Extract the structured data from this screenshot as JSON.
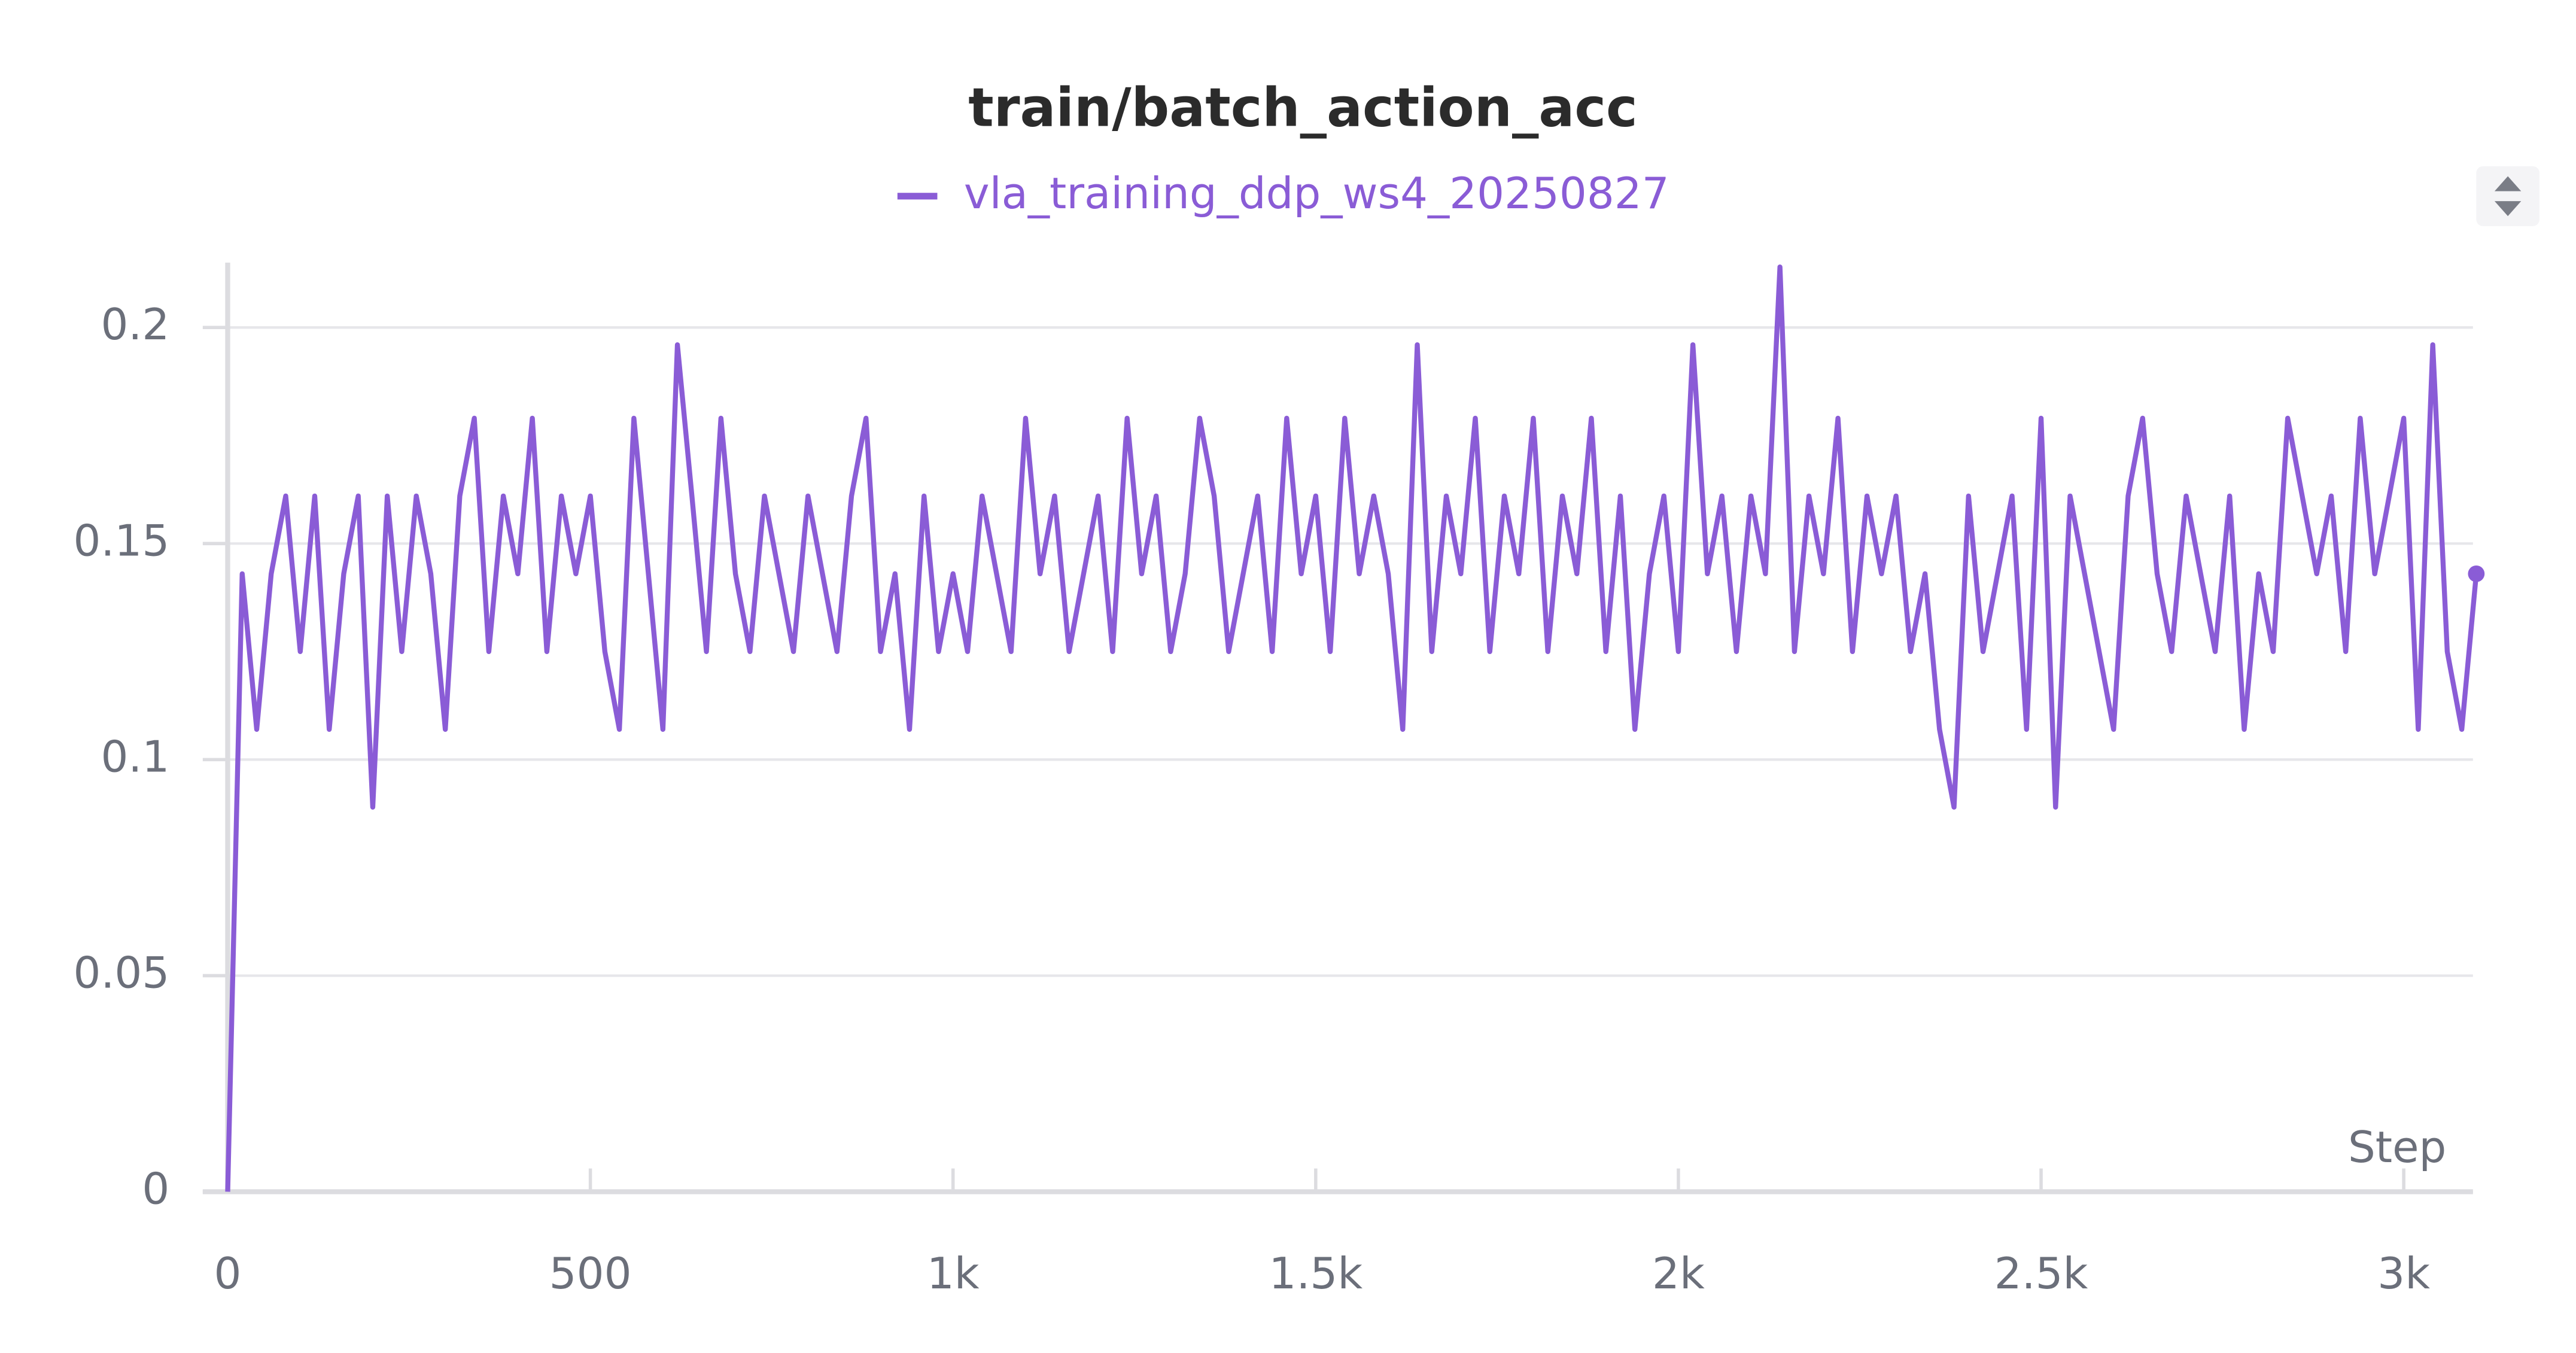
{
  "chart_data": {
    "type": "line",
    "title": "train/batch_action_acc",
    "x_label": "Step",
    "x": [
      0,
      20,
      40,
      60,
      80,
      100,
      120,
      140,
      160,
      180,
      200,
      220,
      240,
      260,
      280,
      300,
      320,
      340,
      360,
      380,
      400,
      420,
      440,
      460,
      480,
      500,
      520,
      540,
      560,
      580,
      600,
      620,
      640,
      660,
      680,
      700,
      720,
      740,
      760,
      780,
      800,
      820,
      840,
      860,
      880,
      900,
      920,
      940,
      960,
      980,
      1000,
      1020,
      1040,
      1060,
      1080,
      1100,
      1120,
      1140,
      1160,
      1180,
      1200,
      1220,
      1240,
      1260,
      1280,
      1300,
      1320,
      1340,
      1360,
      1380,
      1400,
      1420,
      1440,
      1460,
      1480,
      1500,
      1520,
      1540,
      1560,
      1580,
      1600,
      1620,
      1640,
      1660,
      1680,
      1700,
      1720,
      1740,
      1760,
      1780,
      1800,
      1820,
      1840,
      1860,
      1880,
      1900,
      1920,
      1940,
      1960,
      1980,
      2000,
      2020,
      2040,
      2060,
      2080,
      2100,
      2120,
      2140,
      2160,
      2180,
      2200,
      2220,
      2240,
      2260,
      2280,
      2300,
      2320,
      2340,
      2360,
      2380,
      2400,
      2420,
      2440,
      2460,
      2480,
      2500,
      2520,
      2540,
      2560,
      2580,
      2600,
      2620,
      2640,
      2660,
      2680,
      2700,
      2720,
      2740,
      2760,
      2780,
      2800,
      2820,
      2840,
      2860,
      2880,
      2900,
      2920,
      2940,
      2960,
      2980,
      3000,
      3020,
      3040,
      3060,
      3080,
      3100
    ],
    "series": [
      {
        "name": "vla_training_ddp_ws4_20250827",
        "color": "#8a5cd6",
        "values": [
          0,
          0.143,
          0.107,
          0.143,
          0.161,
          0.125,
          0.161,
          0.107,
          0.143,
          0.161,
          0.089,
          0.161,
          0.125,
          0.161,
          0.143,
          0.107,
          0.161,
          0.179,
          0.125,
          0.161,
          0.143,
          0.179,
          0.125,
          0.161,
          0.143,
          0.161,
          0.125,
          0.107,
          0.179,
          0.143,
          0.107,
          0.196,
          0.161,
          0.125,
          0.179,
          0.143,
          0.125,
          0.161,
          0.143,
          0.125,
          0.161,
          0.143,
          0.125,
          0.161,
          0.179,
          0.125,
          0.143,
          0.107,
          0.161,
          0.125,
          0.143,
          0.125,
          0.161,
          0.143,
          0.125,
          0.179,
          0.143,
          0.161,
          0.125,
          0.143,
          0.161,
          0.125,
          0.179,
          0.143,
          0.161,
          0.125,
          0.143,
          0.179,
          0.161,
          0.125,
          0.143,
          0.161,
          0.125,
          0.179,
          0.143,
          0.161,
          0.125,
          0.179,
          0.143,
          0.161,
          0.143,
          0.107,
          0.196,
          0.125,
          0.161,
          0.143,
          0.179,
          0.125,
          0.161,
          0.143,
          0.179,
          0.125,
          0.161,
          0.143,
          0.179,
          0.125,
          0.161,
          0.107,
          0.143,
          0.161,
          0.125,
          0.196,
          0.143,
          0.161,
          0.125,
          0.161,
          0.143,
          0.214,
          0.125,
          0.161,
          0.143,
          0.179,
          0.125,
          0.161,
          0.143,
          0.161,
          0.125,
          0.143,
          0.107,
          0.089,
          0.161,
          0.125,
          0.143,
          0.161,
          0.107,
          0.179,
          0.089,
          0.161,
          0.143,
          0.125,
          0.107,
          0.161,
          0.179,
          0.143,
          0.125,
          0.161,
          0.143,
          0.125,
          0.161,
          0.107,
          0.143,
          0.125,
          0.179,
          0.161,
          0.143,
          0.161,
          0.125,
          0.179,
          0.143,
          0.161,
          0.179,
          0.107,
          0.196,
          0.125,
          0.107,
          0.143
        ]
      }
    ],
    "xlim": [
      0,
      3100
    ],
    "xticks": [
      0,
      500,
      {
        "value": 1000,
        "label": "1k"
      },
      {
        "value": 1500,
        "label": "1.5k"
      },
      {
        "value": 2000,
        "label": "2k"
      },
      {
        "value": 2500,
        "label": "2.5k"
      },
      {
        "value": 3000,
        "label": "3k"
      }
    ],
    "ylim": [
      0,
      0.215
    ],
    "yticks": [
      0,
      0.05,
      0.1,
      0.15,
      0.2
    ],
    "grid": true
  }
}
